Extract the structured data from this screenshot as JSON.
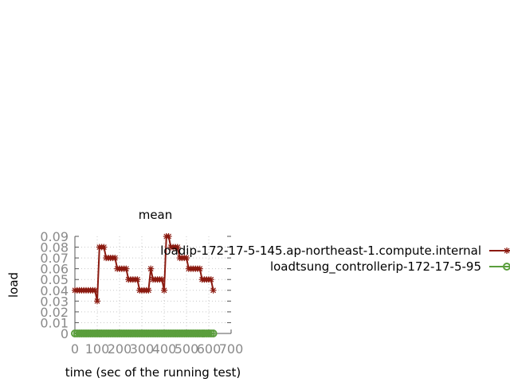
{
  "chart_data": {
    "type": "line",
    "title": "mean",
    "xlabel": "time (sec of the running test)",
    "ylabel": "load",
    "xlim": [
      0,
      700
    ],
    "ylim": [
      0,
      0.09
    ],
    "xticks": [
      "0",
      "100",
      "200",
      "300",
      "400",
      "500",
      "600",
      "700"
    ],
    "yticks": [
      "0",
      "0.01",
      "0.02",
      "0.03",
      "0.04",
      "0.05",
      "0.06",
      "0.07",
      "0.08",
      "0.09"
    ],
    "grid": true,
    "legend_position": "right",
    "series": [
      {
        "name": "loadip-172-17-5-145.ap-northeast-1.compute.internal",
        "color": "#8b1a10",
        "marker": "star",
        "x": [
          0,
          10,
          20,
          30,
          40,
          50,
          60,
          70,
          80,
          90,
          100,
          110,
          120,
          130,
          140,
          150,
          160,
          170,
          180,
          190,
          200,
          210,
          220,
          230,
          240,
          250,
          260,
          270,
          280,
          290,
          300,
          310,
          320,
          330,
          340,
          350,
          360,
          370,
          380,
          390,
          400,
          410,
          420,
          430,
          440,
          450,
          460,
          470,
          480,
          490,
          500,
          510,
          520,
          530,
          540,
          550,
          560,
          570,
          580,
          590,
          600,
          610,
          620
        ],
        "y": [
          0.04,
          0.04,
          0.04,
          0.04,
          0.04,
          0.04,
          0.04,
          0.04,
          0.04,
          0.04,
          0.03,
          0.08,
          0.08,
          0.08,
          0.07,
          0.07,
          0.07,
          0.07,
          0.07,
          0.06,
          0.06,
          0.06,
          0.06,
          0.06,
          0.05,
          0.05,
          0.05,
          0.05,
          0.05,
          0.04,
          0.04,
          0.04,
          0.04,
          0.04,
          0.06,
          0.05,
          0.05,
          0.05,
          0.05,
          0.05,
          0.04,
          0.09,
          0.09,
          0.08,
          0.08,
          0.08,
          0.08,
          0.07,
          0.07,
          0.07,
          0.07,
          0.06,
          0.06,
          0.06,
          0.06,
          0.06,
          0.06,
          0.05,
          0.05,
          0.05,
          0.05,
          0.05,
          0.04
        ]
      },
      {
        "name": "loadtsung_controllerip-172-17-5-95",
        "color": "#5a9e3c",
        "marker": "circle",
        "x": [
          0,
          10,
          20,
          30,
          40,
          50,
          60,
          70,
          80,
          90,
          100,
          110,
          120,
          130,
          140,
          150,
          160,
          170,
          180,
          190,
          200,
          210,
          220,
          230,
          240,
          250,
          260,
          270,
          280,
          290,
          300,
          310,
          320,
          330,
          340,
          350,
          360,
          370,
          380,
          390,
          400,
          410,
          420,
          430,
          440,
          450,
          460,
          470,
          480,
          490,
          500,
          510,
          520,
          530,
          540,
          550,
          560,
          570,
          580,
          590,
          600,
          610,
          620
        ],
        "y": [
          0,
          0,
          0,
          0,
          0,
          0,
          0,
          0,
          0,
          0,
          0,
          0,
          0,
          0,
          0,
          0,
          0,
          0,
          0,
          0,
          0,
          0,
          0,
          0,
          0,
          0,
          0,
          0,
          0,
          0,
          0,
          0,
          0,
          0,
          0,
          0,
          0,
          0,
          0,
          0,
          0,
          0,
          0,
          0,
          0,
          0,
          0,
          0,
          0,
          0,
          0,
          0,
          0,
          0,
          0,
          0,
          0,
          0,
          0,
          0,
          0,
          0,
          0
        ]
      }
    ]
  }
}
